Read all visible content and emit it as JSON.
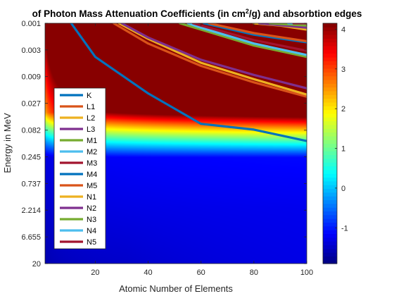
{
  "chart_data": {
    "type": "heatmap",
    "title": "of Photon Mass Attenuation Coefficients (in cm",
    "title_sup": "2",
    "title_suffix": "/g) and absorbtion edges",
    "xlabel": "Atomic Number of Elements",
    "ylabel": "Energy in MeV",
    "xlim": [
      1,
      100
    ],
    "x_ticks": [
      20,
      40,
      60,
      80,
      100
    ],
    "y_scale": "log",
    "ylim": [
      0.001,
      20
    ],
    "y_tick_values": [
      0.001,
      0.003,
      0.009,
      0.027,
      0.082,
      0.245,
      0.737,
      2.214,
      6.655,
      20
    ],
    "y_tick_labels": [
      "0.001",
      "0.003",
      "0.009",
      "0.027",
      "0.082",
      "0.245",
      "0.737",
      "2.214",
      "6.655",
      "20"
    ],
    "colorbar": {
      "colormap": "jet",
      "clim": [
        -1.9,
        4.15
      ],
      "ticks": [
        -1,
        0,
        1,
        2,
        3,
        4
      ],
      "tick_labels": [
        "-1",
        "0",
        "1",
        "2",
        "3",
        "4"
      ]
    },
    "legend": {
      "placement": "lower-left",
      "entries": [
        "K",
        "L1",
        "L2",
        "L3",
        "M1",
        "M2",
        "M3",
        "M4",
        "M5",
        "N1",
        "N2",
        "N3",
        "N4",
        "N5"
      ]
    },
    "series": [
      {
        "name": "K",
        "color": "#0072BD",
        "points": [
          [
            1,
            1.36e-05
          ],
          [
            10,
            0.00087
          ],
          [
            20,
            0.004
          ],
          [
            40,
            0.018
          ],
          [
            60,
            0.063
          ],
          [
            80,
            0.08
          ],
          [
            100,
            0.128
          ]
        ]
      },
      {
        "name": "L1",
        "color": "#D95319",
        "points": [
          [
            27,
            0.001
          ],
          [
            40,
            0.0023
          ],
          [
            60,
            0.0058
          ],
          [
            80,
            0.0114
          ],
          [
            100,
            0.0206
          ]
        ]
      },
      {
        "name": "L2",
        "color": "#EDB120",
        "points": [
          [
            29,
            0.001
          ],
          [
            40,
            0.0019
          ],
          [
            60,
            0.0051
          ],
          [
            80,
            0.01
          ],
          [
            100,
            0.0189
          ]
        ]
      },
      {
        "name": "L3",
        "color": "#7E2F8E",
        "points": [
          [
            30,
            0.001
          ],
          [
            40,
            0.0018
          ],
          [
            60,
            0.0045
          ],
          [
            80,
            0.0084
          ],
          [
            100,
            0.0146
          ]
        ]
      },
      {
        "name": "M1",
        "color": "#77AC30",
        "points": [
          [
            52,
            0.001
          ],
          [
            60,
            0.0013
          ],
          [
            80,
            0.0025
          ],
          [
            100,
            0.004
          ]
        ]
      },
      {
        "name": "M2",
        "color": "#4DBEEE",
        "points": [
          [
            55,
            0.001
          ],
          [
            60,
            0.0012
          ],
          [
            80,
            0.0023
          ],
          [
            100,
            0.0037
          ]
        ]
      },
      {
        "name": "M3",
        "color": "#A2142F",
        "points": [
          [
            57,
            0.001
          ],
          [
            60,
            0.0011
          ],
          [
            80,
            0.002
          ],
          [
            100,
            0.0031
          ]
        ]
      },
      {
        "name": "M4",
        "color": "#0072BD",
        "points": [
          [
            61,
            0.001
          ],
          [
            80,
            0.0016
          ],
          [
            100,
            0.0022
          ]
        ]
      },
      {
        "name": "M5",
        "color": "#D95319",
        "points": [
          [
            63,
            0.001
          ],
          [
            80,
            0.0015
          ],
          [
            100,
            0.0021
          ]
        ]
      },
      {
        "name": "N1",
        "color": "#EDB120",
        "points": [
          [
            80,
            0.001
          ],
          [
            90,
            0.0011
          ],
          [
            100,
            0.0013
          ]
        ]
      },
      {
        "name": "N2",
        "color": "#7E2F8E",
        "points": [
          [
            82,
            0.001
          ],
          [
            100,
            0.0012
          ]
        ]
      },
      {
        "name": "N3",
        "color": "#77AC30",
        "points": [
          [
            86,
            0.001
          ],
          [
            100,
            0.0011
          ]
        ]
      },
      {
        "name": "N4",
        "color": "#4DBEEE",
        "points": [
          [
            93,
            0.001
          ],
          [
            100,
            0.001
          ]
        ]
      },
      {
        "name": "N5",
        "color": "#A2142F",
        "points": [
          [
            95,
            0.001
          ],
          [
            100,
            0.001
          ]
        ]
      }
    ]
  }
}
